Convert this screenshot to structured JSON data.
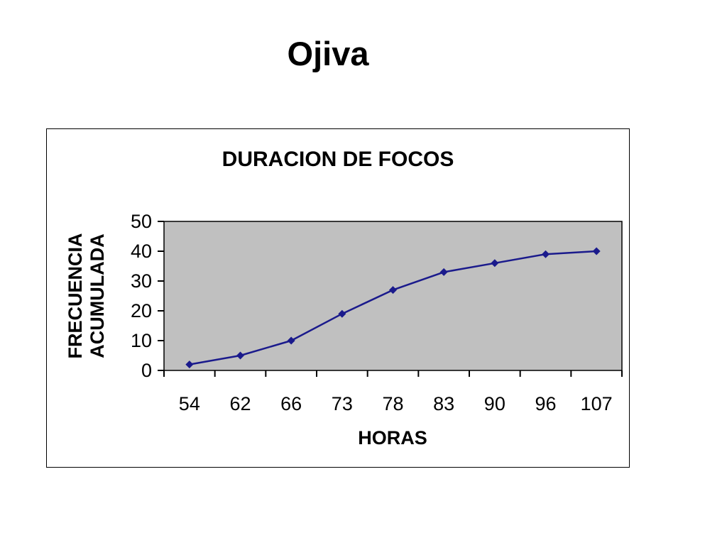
{
  "slide": {
    "title": "Ojiva"
  },
  "chart_data": {
    "type": "line",
    "title": "DURACION DE FOCOS",
    "xlabel": "HORAS",
    "ylabel": "FRECUENCIA ACUMULADA",
    "ylabel_lines": [
      "FRECUENCIA",
      "ACUMULADA"
    ],
    "categories": [
      "54",
      "62",
      "66",
      "73",
      "78",
      "83",
      "90",
      "96",
      "107"
    ],
    "values": [
      2,
      5,
      10,
      19,
      27,
      33,
      36,
      39,
      40
    ],
    "series_name": "FRECUENCIA ACUMULADA",
    "ylim": [
      0,
      50
    ],
    "yticks": [
      0,
      10,
      20,
      30,
      40,
      50
    ],
    "grid": false,
    "legend": "none",
    "marker": "diamond",
    "colors": {
      "line": "#1a1a8c",
      "marker": "#1a1a8c",
      "plot_bg": "#c0c0c0",
      "axis": "#000000",
      "text": "#000000",
      "frame_bg": "#ffffff"
    }
  }
}
